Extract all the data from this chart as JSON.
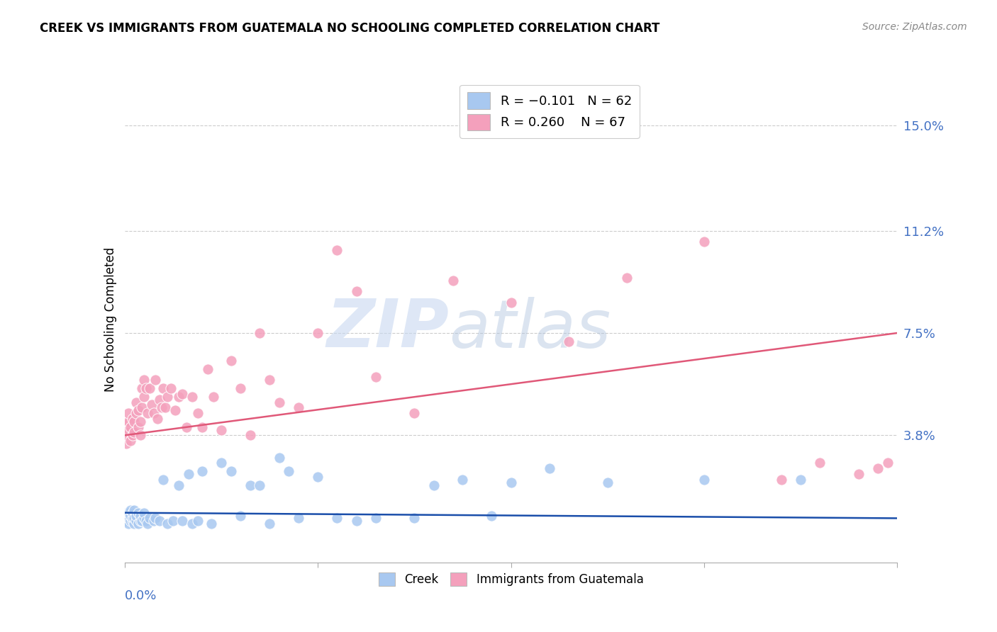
{
  "title": "CREEK VS IMMIGRANTS FROM GUATEMALA NO SCHOOLING COMPLETED CORRELATION CHART",
  "source": "Source: ZipAtlas.com",
  "ylabel": "No Schooling Completed",
  "ytick_labels": [
    "3.8%",
    "7.5%",
    "11.2%",
    "15.0%"
  ],
  "ytick_values": [
    0.038,
    0.075,
    0.112,
    0.15
  ],
  "xlim": [
    0.0,
    0.4
  ],
  "ylim": [
    -0.008,
    0.168
  ],
  "creek_color": "#a8c8f0",
  "guatemala_color": "#f4a0bc",
  "creek_line_color": "#1a4eaa",
  "guatemala_line_color": "#e05878",
  "watermark_zip": "ZIP",
  "watermark_atlas": "atlas",
  "creek_line_start": 0.01,
  "creek_line_end": 0.008,
  "guat_line_start": 0.038,
  "guat_line_end": 0.075,
  "creek_scatter_x": [
    0.001,
    0.001,
    0.001,
    0.002,
    0.002,
    0.002,
    0.003,
    0.003,
    0.003,
    0.004,
    0.004,
    0.004,
    0.005,
    0.005,
    0.005,
    0.006,
    0.006,
    0.007,
    0.007,
    0.008,
    0.008,
    0.009,
    0.01,
    0.01,
    0.011,
    0.012,
    0.013,
    0.015,
    0.016,
    0.018,
    0.02,
    0.022,
    0.025,
    0.028,
    0.03,
    0.033,
    0.035,
    0.038,
    0.04,
    0.045,
    0.05,
    0.055,
    0.06,
    0.065,
    0.07,
    0.075,
    0.08,
    0.085,
    0.09,
    0.1,
    0.11,
    0.12,
    0.13,
    0.15,
    0.16,
    0.175,
    0.19,
    0.2,
    0.22,
    0.25,
    0.3,
    0.35
  ],
  "creek_scatter_y": [
    0.007,
    0.008,
    0.01,
    0.006,
    0.008,
    0.01,
    0.007,
    0.009,
    0.011,
    0.007,
    0.008,
    0.01,
    0.006,
    0.008,
    0.011,
    0.007,
    0.009,
    0.006,
    0.01,
    0.007,
    0.009,
    0.007,
    0.008,
    0.01,
    0.007,
    0.006,
    0.008,
    0.007,
    0.008,
    0.007,
    0.022,
    0.006,
    0.007,
    0.02,
    0.007,
    0.024,
    0.006,
    0.007,
    0.025,
    0.006,
    0.028,
    0.025,
    0.009,
    0.02,
    0.02,
    0.006,
    0.03,
    0.025,
    0.008,
    0.023,
    0.008,
    0.007,
    0.008,
    0.008,
    0.02,
    0.022,
    0.009,
    0.021,
    0.026,
    0.021,
    0.022,
    0.022
  ],
  "guat_scatter_x": [
    0.001,
    0.001,
    0.001,
    0.002,
    0.002,
    0.002,
    0.003,
    0.003,
    0.004,
    0.004,
    0.005,
    0.005,
    0.006,
    0.006,
    0.007,
    0.007,
    0.008,
    0.008,
    0.009,
    0.009,
    0.01,
    0.01,
    0.011,
    0.012,
    0.013,
    0.014,
    0.015,
    0.016,
    0.017,
    0.018,
    0.019,
    0.02,
    0.021,
    0.022,
    0.024,
    0.026,
    0.028,
    0.03,
    0.032,
    0.035,
    0.038,
    0.04,
    0.043,
    0.046,
    0.05,
    0.055,
    0.06,
    0.065,
    0.07,
    0.075,
    0.08,
    0.09,
    0.1,
    0.11,
    0.12,
    0.13,
    0.15,
    0.17,
    0.2,
    0.23,
    0.26,
    0.3,
    0.34,
    0.36,
    0.38,
    0.39,
    0.395
  ],
  "guat_scatter_y": [
    0.035,
    0.038,
    0.042,
    0.04,
    0.043,
    0.046,
    0.036,
    0.041,
    0.038,
    0.044,
    0.039,
    0.043,
    0.046,
    0.05,
    0.041,
    0.047,
    0.038,
    0.043,
    0.055,
    0.048,
    0.052,
    0.058,
    0.055,
    0.046,
    0.055,
    0.049,
    0.046,
    0.058,
    0.044,
    0.051,
    0.048,
    0.055,
    0.048,
    0.052,
    0.055,
    0.047,
    0.052,
    0.053,
    0.041,
    0.052,
    0.046,
    0.041,
    0.062,
    0.052,
    0.04,
    0.065,
    0.055,
    0.038,
    0.075,
    0.058,
    0.05,
    0.048,
    0.075,
    0.105,
    0.09,
    0.059,
    0.046,
    0.094,
    0.086,
    0.072,
    0.095,
    0.108,
    0.022,
    0.028,
    0.024,
    0.026,
    0.028
  ]
}
